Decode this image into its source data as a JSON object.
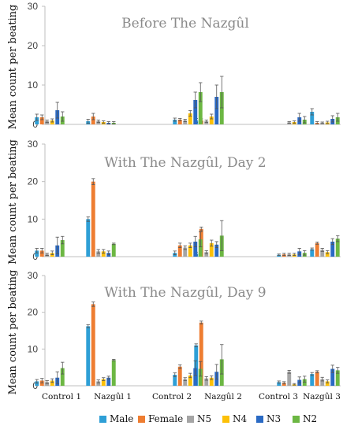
{
  "chart_data": {
    "type": "bar",
    "panels": [
      {
        "title": "Before The Nazgûl",
        "ylabel": "Mean count per  beating",
        "ylim": [
          0,
          30
        ],
        "yticks": [
          0,
          10,
          20,
          30
        ],
        "series": [
          {
            "name": "Male",
            "values": [
              1.8,
              0.8,
              1.2,
              1.0,
              null,
              3.2
            ],
            "errors": [
              0.8,
              0.5,
              0.4,
              0.5,
              0,
              0.8
            ]
          },
          {
            "name": "Female",
            "values": [
              1.8,
              2.0,
              1.2,
              1.0,
              null,
              0.4
            ],
            "errors": [
              0.6,
              0.8,
              0.3,
              0.4,
              0,
              0.3
            ]
          },
          {
            "name": "N5",
            "values": [
              0.8,
              0.8,
              1.0,
              0.8,
              0.5,
              0.4
            ],
            "errors": [
              0.3,
              0.3,
              0.3,
              0.3,
              0.2,
              0.2
            ]
          },
          {
            "name": "N4",
            "values": [
              1.0,
              0.6,
              2.8,
              2.0,
              0.6,
              0.5
            ],
            "errors": [
              0.4,
              0.3,
              0.7,
              0.6,
              0.3,
              0.3
            ]
          },
          {
            "name": "N3",
            "values": [
              3.6,
              0.4,
              6.2,
              7.0,
              1.8,
              1.4
            ],
            "errors": [
              2.0,
              0.3,
              2.0,
              3.0,
              1.0,
              0.8
            ]
          },
          {
            "name": "N2",
            "values": [
              2.0,
              0.4,
              8.2,
              8.2,
              1.2,
              1.8
            ],
            "errors": [
              1.2,
              0.3,
              2.4,
              4.0,
              0.8,
              1.0
            ]
          }
        ]
      },
      {
        "title": "With The Nazgûl, Day 2",
        "ylabel": "Mean count per  beating",
        "ylim": [
          0,
          30
        ],
        "yticks": [
          0,
          10,
          20,
          30
        ],
        "series": [
          {
            "name": "Male",
            "values": [
              1.6,
              10.0,
              1.0,
              0.8,
              0.5,
              2.0
            ],
            "errors": [
              0.6,
              0.6,
              0.5,
              0.4,
              0.2,
              0.3
            ]
          },
          {
            "name": "Female",
            "values": [
              1.6,
              20.0,
              3.0,
              7.4,
              0.6,
              3.6
            ],
            "errors": [
              0.6,
              0.8,
              0.6,
              0.5,
              0.3,
              0.3
            ]
          },
          {
            "name": "N5",
            "values": [
              0.6,
              1.4,
              2.4,
              1.2,
              0.6,
              1.8
            ],
            "errors": [
              0.3,
              0.5,
              0.5,
              0.4,
              0.3,
              0.4
            ]
          },
          {
            "name": "N4",
            "values": [
              1.0,
              1.4,
              3.0,
              3.6,
              0.6,
              1.2
            ],
            "errors": [
              0.5,
              0.5,
              0.6,
              0.8,
              0.3,
              0.4
            ]
          },
          {
            "name": "N3",
            "values": [
              3.0,
              1.0,
              4.0,
              3.2,
              1.4,
              4.0
            ],
            "errors": [
              2.2,
              0.5,
              1.4,
              0.8,
              0.8,
              0.8
            ]
          },
          {
            "name": "N2",
            "values": [
              4.4,
              3.4,
              4.6,
              5.6,
              1.0,
              4.8
            ],
            "errors": [
              1.0,
              0.2,
              2.0,
              4.0,
              0.6,
              0.8
            ]
          }
        ]
      },
      {
        "title": "With The Nazgûl, Day 9",
        "ylabel": "Mean count per  beating",
        "ylim": [
          0,
          30
        ],
        "yticks": [
          0,
          10,
          20,
          30
        ],
        "series": [
          {
            "name": "Male",
            "values": [
              1.2,
              16.2,
              3.0,
              11.0,
              1.0,
              3.2
            ],
            "errors": [
              0.5,
              0.4,
              0.5,
              0.4,
              0.3,
              0.4
            ]
          },
          {
            "name": "Female",
            "values": [
              1.4,
              22.2,
              5.2,
              17.2,
              0.8,
              3.8
            ],
            "errors": [
              0.6,
              0.6,
              0.5,
              0.4,
              0.3,
              0.3
            ]
          },
          {
            "name": "N5",
            "values": [
              1.0,
              1.2,
              1.8,
              2.0,
              3.8,
              1.8
            ],
            "errors": [
              0.4,
              0.4,
              0.4,
              0.5,
              0.4,
              0.5
            ]
          },
          {
            "name": "N4",
            "values": [
              1.4,
              1.8,
              2.8,
              2.2,
              0.4,
              1.2
            ],
            "errors": [
              0.5,
              0.4,
              0.6,
              0.5,
              0.2,
              0.4
            ]
          },
          {
            "name": "N3",
            "values": [
              2.2,
              2.2,
              4.8,
              3.8,
              1.6,
              4.6
            ],
            "errors": [
              1.6,
              0.4,
              2.0,
              2.0,
              0.8,
              1.0
            ]
          },
          {
            "name": "N2",
            "values": [
              4.8,
              7.0,
              4.6,
              7.2,
              1.8,
              4.2
            ],
            "errors": [
              1.6,
              0.2,
              2.0,
              4.0,
              0.8,
              0.8
            ]
          }
        ]
      }
    ],
    "categories": [
      "Control 1",
      "Nazgûl 1",
      "Control 2",
      "Nazgûl 2",
      "Control 3",
      "Nazgûl 3"
    ],
    "colors": {
      "Male": "#2e9fd6",
      "Female": "#ee7d31",
      "N5": "#a5a5a5",
      "N4": "#fcc007",
      "N3": "#2a6ac4",
      "N2": "#6cb743"
    },
    "legend": {
      "placement": "bottom",
      "entries": [
        "Male",
        "Female",
        "N5",
        "N4",
        "N3",
        "N2"
      ]
    },
    "grid": false
  }
}
